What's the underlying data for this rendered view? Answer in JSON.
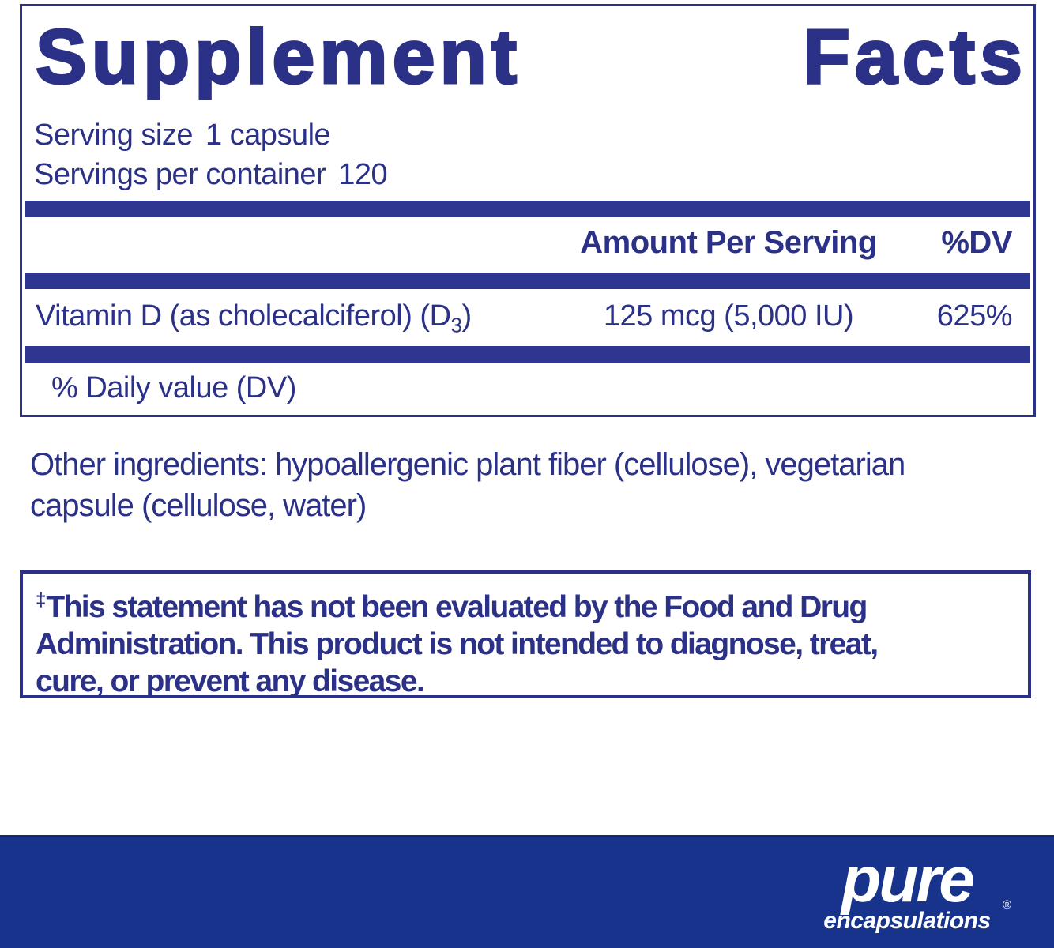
{
  "label": {
    "title": {
      "word1": "Supplement",
      "word2": "Facts"
    },
    "serving": {
      "size_label": "Serving size",
      "size_value": "1 capsule",
      "container_label": "Servings per container",
      "container_value": "120"
    },
    "table": {
      "amount_header": "Amount Per Serving",
      "dv_header": "%DV",
      "row": {
        "name_prefix": "Vitamin D (as cholecalciferol) (D",
        "name_subscript": "3",
        "name_suffix": ")",
        "amount": "125 mcg (5,000 IU)",
        "dv": "625%"
      },
      "footnote": "% Daily value (DV)"
    }
  },
  "other_ingredients": {
    "line1": "Other ingredients: hypoallergenic plant fiber (cellulose), vegetarian",
    "line2": "capsule (cellulose, water)"
  },
  "disclaimer": {
    "dagger": "‡",
    "line1": "This statement has not been evaluated by the Food and Drug",
    "line2": "Administration. This product is not intended to diagnose, treat,",
    "line3": "cure, or prevent any disease."
  },
  "brand": {
    "name": "pure",
    "subname": "encapsulations",
    "registered": "®"
  },
  "colors": {
    "navy_text": "#2b3187",
    "bar_fill": "#2e3691",
    "band_blue": "#17338b",
    "background": "#ffffff"
  }
}
